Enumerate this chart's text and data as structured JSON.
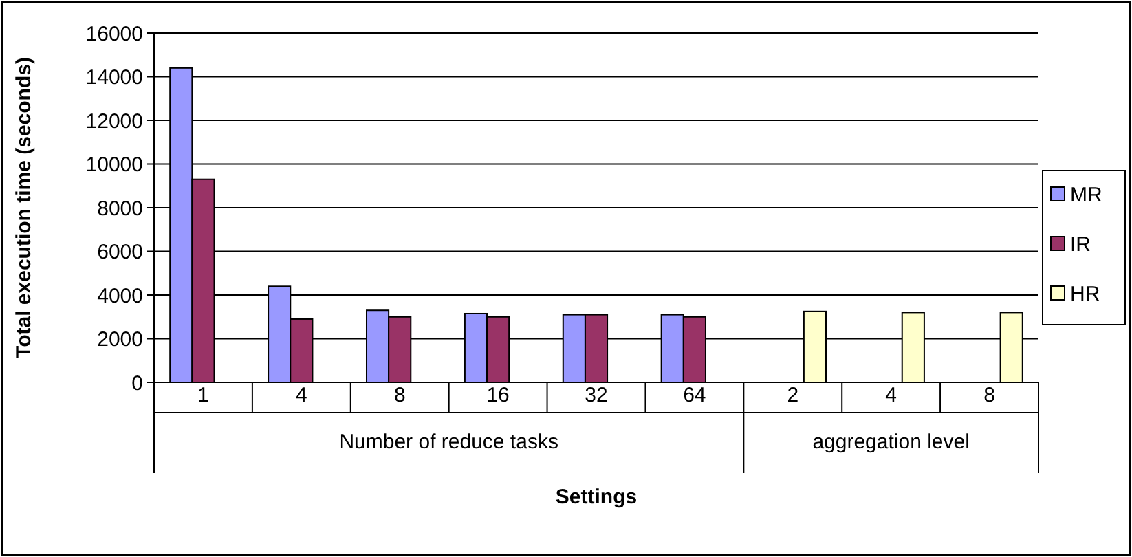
{
  "chart_data": {
    "type": "bar",
    "xlabel": "Settings",
    "ylabel": "Total execution time (seconds)",
    "categories": [
      "1",
      "4",
      "8",
      "16",
      "32",
      "64",
      "2",
      "4",
      "8"
    ],
    "series": [
      {
        "name": "MR",
        "color": "#9999ff",
        "values": [
          14400,
          4400,
          3300,
          3150,
          3100,
          3100,
          null,
          null,
          null
        ]
      },
      {
        "name": "IR",
        "color": "#993366",
        "values": [
          9300,
          2900,
          3000,
          3000,
          3100,
          3000,
          null,
          null,
          null
        ]
      },
      {
        "name": "HR",
        "color": "#ffffcc",
        "values": [
          null,
          null,
          null,
          null,
          null,
          null,
          3250,
          3200,
          3200
        ]
      }
    ],
    "ylim": [
      0,
      16000
    ],
    "yticks": [
      0,
      2000,
      4000,
      6000,
      8000,
      10000,
      12000,
      14000,
      16000
    ],
    "grid": "y",
    "legend": "right",
    "annotations": [
      "Number of reduce tasks",
      "aggregation level"
    ]
  }
}
